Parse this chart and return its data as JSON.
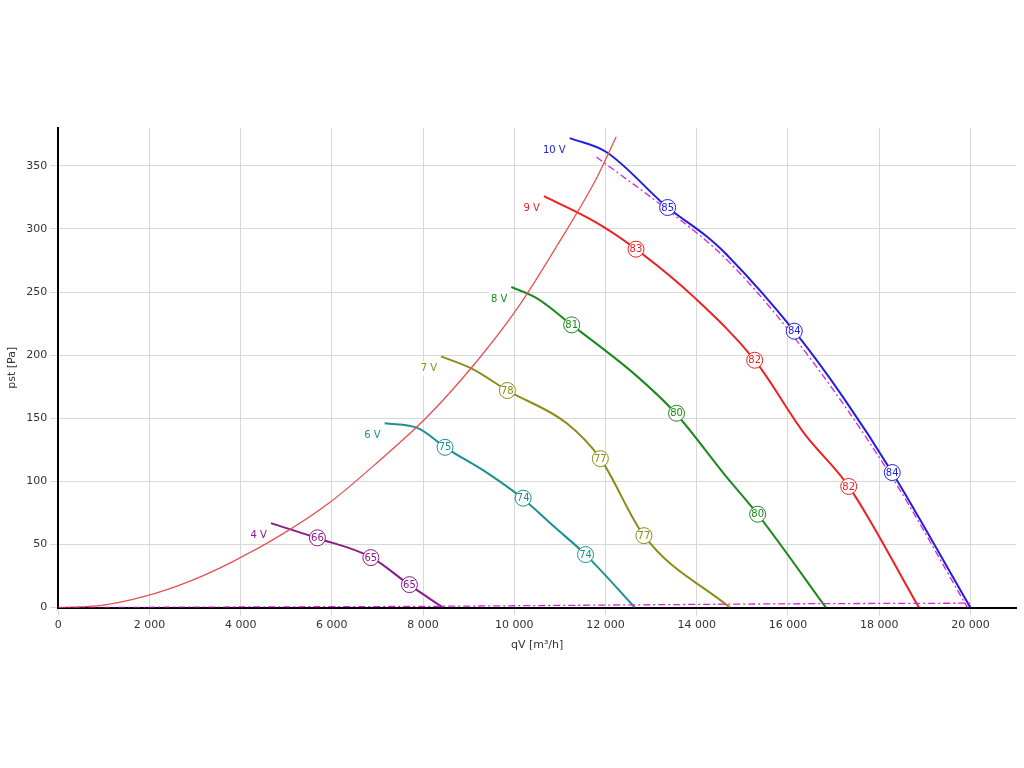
{
  "chart_data": {
    "type": "line",
    "xlabel": "qV [m³/h]",
    "ylabel": "pst [Pa]",
    "xlim": [
      0,
      21000
    ],
    "ylim": [
      0,
      380
    ],
    "xticks": [
      0,
      {
        "value": 2000,
        "label": "2 000"
      },
      {
        "value": 4000,
        "label": "4 000"
      },
      {
        "value": 6000,
        "label": "6 000"
      },
      {
        "value": 8000,
        "label": "8 000"
      },
      {
        "value": 10000,
        "label": "10 000"
      },
      {
        "value": 12000,
        "label": "12 000"
      },
      {
        "value": 14000,
        "label": "14 000"
      },
      {
        "value": 16000,
        "label": "16 000"
      },
      {
        "value": 18000,
        "label": "18 000"
      },
      {
        "value": 20000,
        "label": "20 000"
      }
    ],
    "yticks": [
      0,
      50,
      100,
      150,
      200,
      250,
      300,
      350
    ],
    "grid": true,
    "legend": false,
    "line_style": "solid",
    "series": [
      {
        "color": "#e85050",
        "x": [
          0,
          954,
          1909,
          2863,
          3774,
          4859,
          5944,
          7028,
          8113,
          9197,
          10065,
          10933,
          11800,
          12234
        ],
        "values": [
          0,
          1.7,
          9,
          20.6,
          35.5,
          57,
          83,
          116,
          152,
          196,
          237,
          286.5,
          340,
          373
        ]
      },
      {
        "color": "#e020e0",
        "line_style": "dashed",
        "x": [
          0,
          4000,
          8000,
          12000,
          16000,
          20000
        ],
        "values": [
          0,
          0.5,
          1,
          2,
          3,
          3.5
        ]
      },
      {
        "color": "#e020e0",
        "line_style": "dashed",
        "x": [
          11800,
          13362,
          14620,
          16139,
          18286,
          19935
        ],
        "values": [
          357,
          315,
          277,
          214,
          103,
          0
        ]
      },
      {
        "name": "4 V",
        "color": "#8b1a8b",
        "x": [
          4664,
          5683,
          6855,
          7700,
          8438
        ],
        "values": [
          66.9,
          55,
          40,
          18,
          0
        ]
      },
      {
        "name": "6 V",
        "color": "#1a9090",
        "x": [
          7158,
          7896,
          8482,
          9414,
          10174,
          10890,
          11562,
          12646
        ],
        "values": [
          146,
          142,
          127,
          106.5,
          86.7,
          63.6,
          42,
          0
        ]
      },
      {
        "name": "7 V",
        "color": "#8c8c1a",
        "x": [
          8395,
          9089,
          9848,
          11150,
          11887,
          12842,
          14729
        ],
        "values": [
          199,
          189,
          172,
          146,
          118,
          57,
          0
        ]
      },
      {
        "name": "8 V",
        "color": "#1a8a1a",
        "x": [
          9935,
          10499,
          11258,
          12668,
          13536,
          14620,
          15336,
          16833
        ],
        "values": [
          254,
          245,
          224,
          184,
          154,
          105,
          74,
          0
        ]
      },
      {
        "name": "9 V",
        "color": "#ee2020",
        "x": [
          10650,
          11800,
          12668,
          13970,
          15271,
          16356,
          17332,
          18872
        ],
        "values": [
          326,
          305,
          284,
          245,
          196,
          138,
          96,
          0
        ]
      },
      {
        "name": "10 V",
        "color": "#2020e0",
        "x": [
          11215,
          12017,
          13362,
          14187,
          14620,
          16139,
          17223,
          18286,
          20000
        ],
        "values": [
          372,
          361,
          317,
          295,
          281,
          219,
          166,
          107,
          0
        ]
      }
    ],
    "annotations": [
      {
        "text": "66",
        "x": 5683,
        "y": 55.3
      },
      {
        "text": "65",
        "x": 6855,
        "y": 39.6
      },
      {
        "text": "65",
        "x": 7701,
        "y": 18.2
      },
      {
        "text": "75",
        "x": 8482,
        "y": 127
      },
      {
        "text": "74",
        "x": 10195,
        "y": 86.7
      },
      {
        "text": "74",
        "x": 11562,
        "y": 42
      },
      {
        "text": "78",
        "x": 9848,
        "y": 172
      },
      {
        "text": "77",
        "x": 11887,
        "y": 118
      },
      {
        "text": "77",
        "x": 12842,
        "y": 57
      },
      {
        "text": "81",
        "x": 11258,
        "y": 224
      },
      {
        "text": "80",
        "x": 13557,
        "y": 154
      },
      {
        "text": "80",
        "x": 15336,
        "y": 74
      },
      {
        "text": "85",
        "x": 13362,
        "y": 317
      },
      {
        "text": "84",
        "x": 16139,
        "y": 219
      },
      {
        "text": "84",
        "x": 18286,
        "y": 107
      },
      {
        "text": "83",
        "x": 12668,
        "y": 284
      },
      {
        "text": "82",
        "x": 15271,
        "y": 196
      },
      {
        "text": "82",
        "x": 17332,
        "y": 96
      }
    ]
  }
}
